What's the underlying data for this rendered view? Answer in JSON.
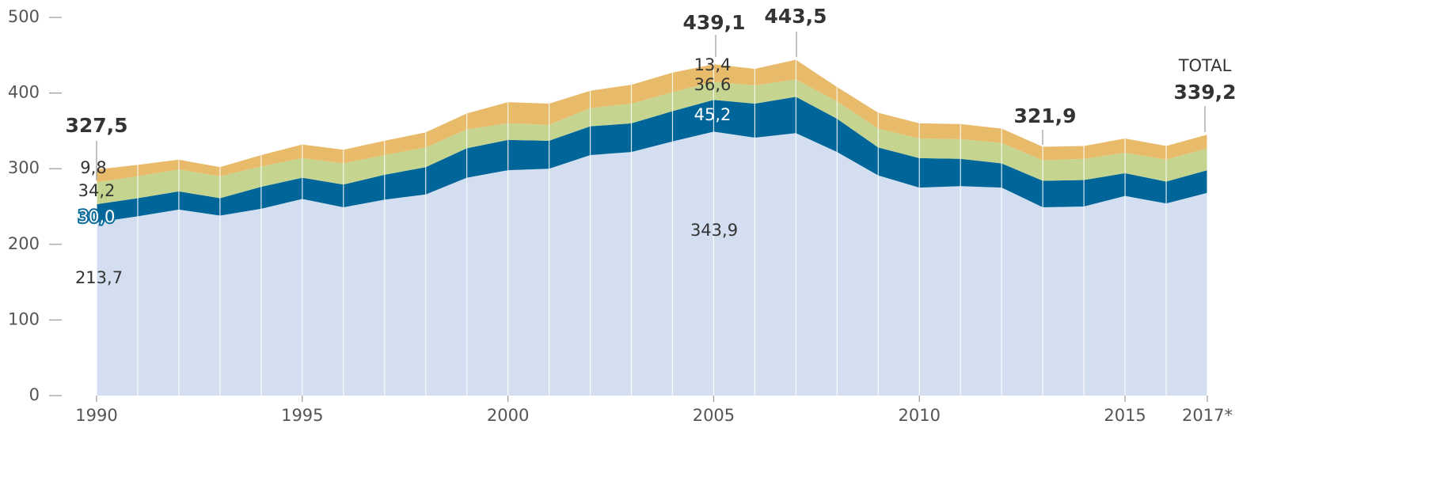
{
  "chart_data": {
    "type": "stacked_area",
    "x": [
      1990,
      1991,
      1992,
      1993,
      1994,
      1995,
      1996,
      1997,
      1998,
      1999,
      2000,
      2001,
      2002,
      2003,
      2004,
      2005,
      2006,
      2007,
      2008,
      2009,
      2010,
      2011,
      2012,
      2013,
      2014,
      2015,
      2016,
      2017
    ],
    "series": [
      {
        "color": "#d3dff0",
        "values": [
          229,
          237,
          246,
          238,
          247,
          260,
          249,
          259,
          266,
          288,
          298,
          300,
          318,
          322,
          336,
          349,
          341,
          347,
          322,
          291,
          275,
          277,
          275,
          249,
          250,
          264,
          254,
          268
        ]
      },
      {
        "color": "#006699",
        "values": [
          24,
          24,
          24,
          23,
          29,
          28,
          30,
          33,
          36,
          39,
          40,
          37,
          38,
          38,
          40,
          42,
          45,
          48,
          44,
          37,
          39,
          36,
          32,
          35,
          35,
          30,
          29,
          30
        ]
      },
      {
        "color": "#c5d48f",
        "values": [
          29,
          29,
          29,
          29,
          27,
          26,
          28,
          26,
          26,
          25,
          22,
          21,
          24,
          26,
          25,
          24,
          24,
          23,
          23,
          25,
          26,
          26,
          27,
          27,
          28,
          27,
          29,
          29
        ]
      },
      {
        "color": "#e8bb6a",
        "values": [
          17,
          15,
          13,
          12,
          15,
          18,
          18,
          19,
          20,
          21,
          28,
          28,
          23,
          25,
          26,
          23,
          22,
          26,
          19,
          21,
          20,
          20,
          19,
          18,
          17,
          19,
          18,
          18
        ]
      }
    ],
    "xlim": [
      1990,
      2017
    ],
    "xticks": [
      1990,
      1995,
      2000,
      2005,
      2010,
      2015,
      {
        "value": 2017,
        "label": "2017*"
      }
    ],
    "ylim": [
      0,
      500
    ],
    "yticks": [
      0,
      100,
      200,
      300,
      400,
      500
    ],
    "annotations": [
      "327,5",
      "9,8",
      "34,2",
      "30,0",
      "213,7",
      "439,1",
      "13,4",
      "36,6",
      "45,2",
      "343,9",
      "443,5",
      "321,9",
      "TOTAL",
      "339,2"
    ]
  }
}
